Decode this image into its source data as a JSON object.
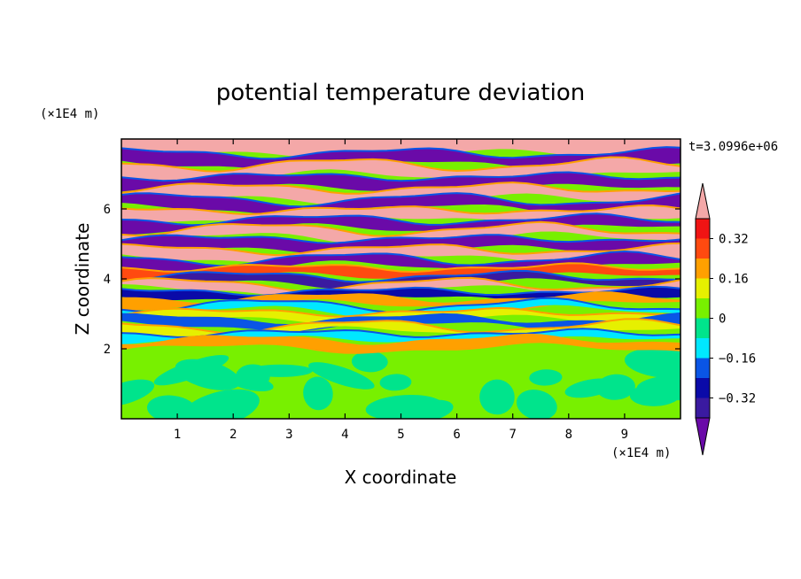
{
  "chart_data": {
    "type": "heatmap",
    "title": "potential temperature deviation",
    "xlabel": "X coordinate",
    "ylabel": "Z coordinate",
    "x_unit": "(×1E4 m)",
    "y_unit": "(×1E4 m)",
    "time_label": "t=3.0996e+06",
    "xlim": [
      0,
      10
    ],
    "ylim": [
      0,
      8
    ],
    "x_ticks": [
      1,
      2,
      3,
      4,
      5,
      6,
      7,
      8,
      9
    ],
    "y_ticks": [
      2,
      4,
      6
    ],
    "colorbar": {
      "levels": [
        -0.4,
        -0.32,
        -0.24,
        -0.16,
        -0.08,
        0,
        0.08,
        0.16,
        0.24,
        0.32,
        0.4
      ],
      "tick_labels": [
        "0.32",
        "0.16",
        "0",
        "−0.16",
        "−0.32"
      ],
      "tick_values": [
        0.32,
        0.16,
        0,
        -0.16,
        -0.32
      ],
      "colors": [
        "#6a0aa8",
        "#3a1aa0",
        "#0a0aa8",
        "#0a55e6",
        "#00e8ff",
        "#00e48c",
        "#78f000",
        "#e6f000",
        "#ffa000",
        "#ff4a10",
        "#f01414",
        "#f4a8a8"
      ],
      "extend": "both"
    },
    "lower_layer": {
      "z_range": [
        0,
        2
      ],
      "dominant_value": 0.04,
      "secondary_value": -0.04
    },
    "upper_bands": [
      {
        "z": 7.75,
        "value": 0.45
      },
      {
        "z": 7.45,
        "value": -0.45
      },
      {
        "z": 7.1,
        "value": 0.45
      },
      {
        "z": 6.75,
        "value": -0.45
      },
      {
        "z": 6.45,
        "value": 0.45
      },
      {
        "z": 6.1,
        "value": -0.45
      },
      {
        "z": 5.85,
        "value": 0.45
      },
      {
        "z": 5.55,
        "value": -0.45
      },
      {
        "z": 5.3,
        "value": 0.45
      },
      {
        "z": 5.0,
        "value": -0.45
      },
      {
        "z": 4.7,
        "value": 0.45
      },
      {
        "z": 4.45,
        "value": -0.45
      },
      {
        "z": 4.2,
        "value": 0.3
      },
      {
        "z": 3.95,
        "value": -0.36
      },
      {
        "z": 3.75,
        "value": 0.45
      },
      {
        "z": 3.55,
        "value": -0.3
      },
      {
        "z": 3.35,
        "value": 0.2
      },
      {
        "z": 3.15,
        "value": -0.12
      },
      {
        "z": 2.95,
        "value": 0.1
      },
      {
        "z": 2.75,
        "value": -0.18
      },
      {
        "z": 2.55,
        "value": 0.12
      },
      {
        "z": 2.35,
        "value": -0.1
      },
      {
        "z": 2.15,
        "value": 0.18
      }
    ]
  }
}
